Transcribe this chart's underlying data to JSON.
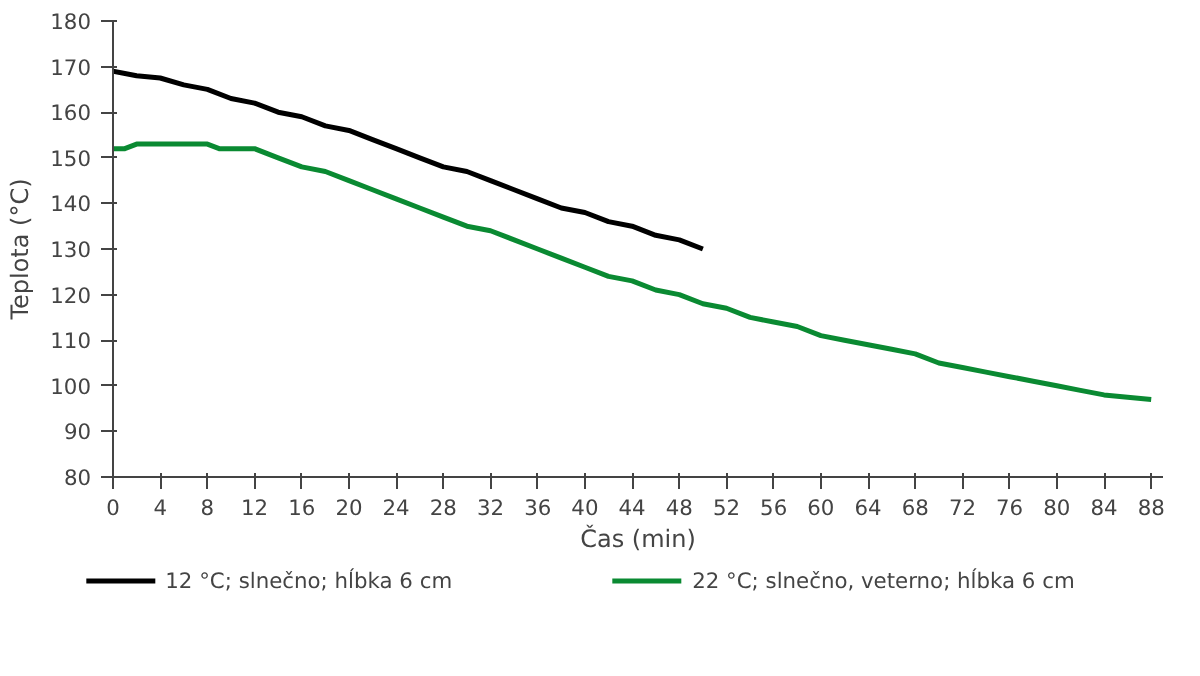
{
  "chart_data": {
    "type": "line",
    "xlabel": "Čas (min)",
    "ylabel": "Teplota (°C)",
    "xlim": [
      0,
      89
    ],
    "ylim": [
      80,
      180
    ],
    "xticks": [
      0,
      4,
      8,
      12,
      16,
      20,
      24,
      28,
      32,
      36,
      40,
      44,
      48,
      52,
      56,
      60,
      64,
      68,
      72,
      76,
      80,
      84,
      88
    ],
    "yticks": [
      80,
      90,
      100,
      110,
      120,
      130,
      140,
      150,
      160,
      170,
      180
    ],
    "grid": false,
    "legend": "bottom",
    "marker": "none",
    "line_style": "solid",
    "series": [
      {
        "name": "12 °C; slnečno; hĺbka 6 cm",
        "color": "#000000",
        "x": [
          0,
          2,
          4,
          6,
          8,
          10,
          12,
          14,
          16,
          18,
          20,
          22,
          24,
          26,
          28,
          30,
          32,
          34,
          36,
          38,
          40,
          42,
          44,
          46,
          48,
          50
        ],
        "values": [
          169,
          168,
          167.5,
          166,
          165,
          163,
          162,
          160,
          159,
          157,
          156,
          154,
          152,
          150,
          148,
          147,
          145,
          143,
          141,
          139,
          138,
          136,
          135,
          133,
          132,
          130
        ]
      },
      {
        "name": "22 °C; slnečno, veterno; hĺbka 6 cm",
        "color": "#0a8a32",
        "x": [
          0,
          1,
          2,
          4,
          6,
          8,
          9,
          12,
          14,
          16,
          18,
          20,
          22,
          24,
          26,
          28,
          30,
          32,
          34,
          36,
          38,
          40,
          42,
          44,
          46,
          48,
          50,
          52,
          54,
          56,
          58,
          60,
          62,
          64,
          66,
          68,
          70,
          72,
          74,
          76,
          78,
          80,
          82,
          84,
          86,
          88
        ],
        "values": [
          152,
          152,
          153,
          153,
          153,
          153,
          152,
          152,
          150,
          148,
          147,
          145,
          143,
          141,
          139,
          137,
          135,
          134,
          132,
          130,
          128,
          126,
          124,
          123,
          121,
          120,
          118,
          117,
          115,
          114,
          113,
          111,
          110,
          109,
          108,
          107,
          105,
          104,
          103,
          102,
          101,
          100,
          99,
          98,
          97.5,
          97
        ]
      }
    ]
  }
}
